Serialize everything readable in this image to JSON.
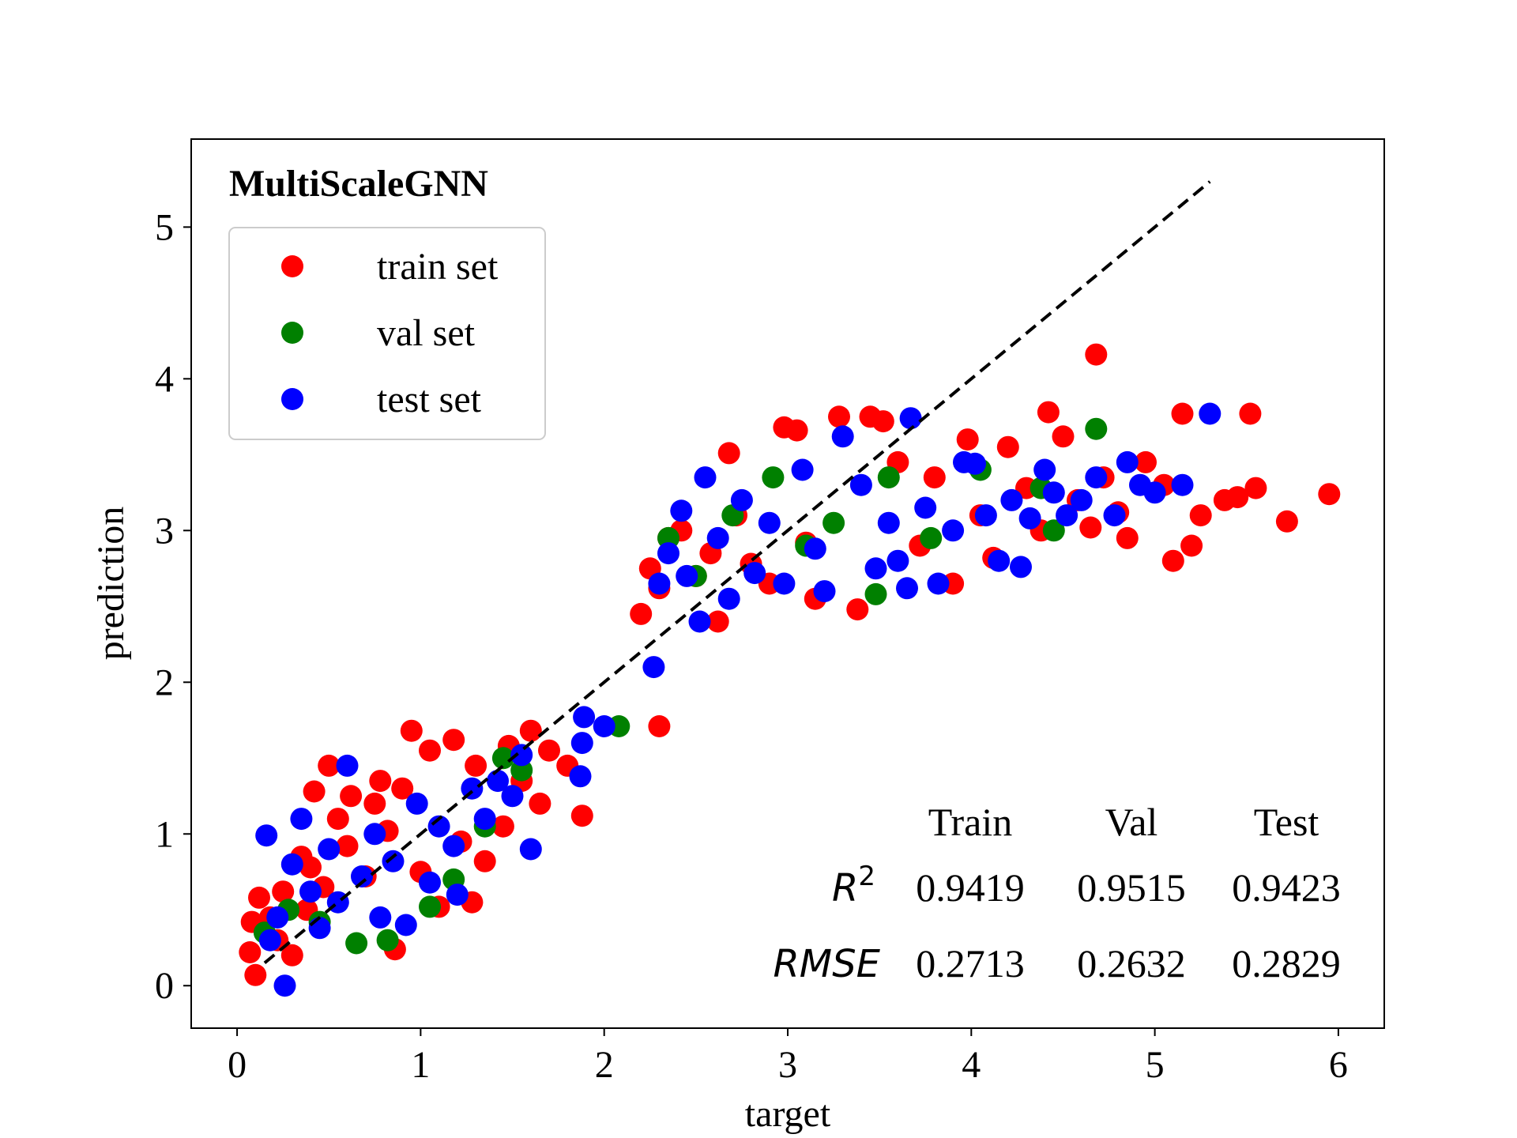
{
  "chart_data": {
    "type": "scatter",
    "title": "MultiScaleGNN",
    "xlabel": "target",
    "ylabel": "prediction",
    "xlim": [
      -0.25,
      6.25
    ],
    "ylim": [
      -0.28,
      5.58
    ],
    "xticks": [
      "0",
      "1",
      "2",
      "3",
      "4",
      "5",
      "6"
    ],
    "yticks": [
      "0",
      "1",
      "2",
      "3",
      "4",
      "5"
    ],
    "legend_position": "top-left",
    "grid": false,
    "reference_line": {
      "style": "dashed",
      "color": "#000000",
      "from": [
        0.15,
        0.15
      ],
      "to": [
        5.3,
        5.3
      ]
    },
    "series": [
      {
        "name": "train set",
        "color": "#ff0000",
        "values": [
          [
            0.08,
            0.42
          ],
          [
            0.07,
            0.22
          ],
          [
            0.1,
            0.07
          ],
          [
            0.12,
            0.58
          ],
          [
            0.18,
            0.45
          ],
          [
            0.22,
            0.3
          ],
          [
            0.25,
            0.62
          ],
          [
            0.3,
            0.2
          ],
          [
            0.35,
            0.85
          ],
          [
            0.38,
            0.5
          ],
          [
            0.4,
            0.78
          ],
          [
            0.42,
            1.28
          ],
          [
            0.47,
            0.65
          ],
          [
            0.5,
            1.45
          ],
          [
            0.55,
            1.1
          ],
          [
            0.6,
            0.92
          ],
          [
            0.62,
            1.25
          ],
          [
            0.7,
            0.72
          ],
          [
            0.75,
            1.2
          ],
          [
            0.78,
            1.35
          ],
          [
            0.82,
            1.02
          ],
          [
            0.86,
            0.24
          ],
          [
            0.9,
            1.3
          ],
          [
            0.95,
            1.68
          ],
          [
            1.0,
            0.75
          ],
          [
            1.05,
            1.55
          ],
          [
            1.1,
            0.52
          ],
          [
            1.18,
            1.62
          ],
          [
            1.22,
            0.95
          ],
          [
            1.28,
            0.55
          ],
          [
            1.3,
            1.45
          ],
          [
            1.35,
            0.82
          ],
          [
            1.45,
            1.05
          ],
          [
            1.48,
            1.58
          ],
          [
            1.55,
            1.35
          ],
          [
            1.6,
            1.68
          ],
          [
            1.65,
            1.2
          ],
          [
            1.7,
            1.55
          ],
          [
            1.8,
            1.45
          ],
          [
            1.88,
            1.12
          ],
          [
            2.3,
            1.71
          ],
          [
            2.2,
            2.45
          ],
          [
            2.25,
            2.75
          ],
          [
            2.3,
            2.62
          ],
          [
            2.35,
            2.95
          ],
          [
            2.42,
            3.0
          ],
          [
            2.5,
            2.7
          ],
          [
            2.58,
            2.85
          ],
          [
            2.62,
            2.4
          ],
          [
            2.68,
            3.51
          ],
          [
            2.72,
            3.1
          ],
          [
            2.8,
            2.78
          ],
          [
            2.9,
            2.65
          ],
          [
            2.98,
            3.68
          ],
          [
            3.05,
            3.66
          ],
          [
            3.1,
            2.92
          ],
          [
            3.15,
            2.55
          ],
          [
            3.28,
            3.75
          ],
          [
            3.38,
            2.48
          ],
          [
            3.45,
            3.75
          ],
          [
            3.52,
            3.72
          ],
          [
            3.6,
            3.45
          ],
          [
            3.72,
            2.9
          ],
          [
            3.8,
            3.35
          ],
          [
            3.9,
            2.65
          ],
          [
            3.98,
            3.6
          ],
          [
            4.05,
            3.1
          ],
          [
            4.12,
            2.82
          ],
          [
            4.2,
            3.55
          ],
          [
            4.3,
            3.28
          ],
          [
            4.38,
            3.0
          ],
          [
            4.42,
            3.78
          ],
          [
            4.5,
            3.62
          ],
          [
            4.58,
            3.2
          ],
          [
            4.65,
            3.02
          ],
          [
            4.68,
            4.16
          ],
          [
            4.72,
            3.35
          ],
          [
            4.8,
            3.12
          ],
          [
            4.85,
            2.95
          ],
          [
            4.95,
            3.45
          ],
          [
            5.05,
            3.3
          ],
          [
            5.1,
            2.8
          ],
          [
            5.15,
            3.77
          ],
          [
            5.2,
            2.9
          ],
          [
            5.25,
            3.1
          ],
          [
            5.38,
            3.2
          ],
          [
            5.45,
            3.22
          ],
          [
            5.52,
            3.77
          ],
          [
            5.55,
            3.28
          ],
          [
            5.72,
            3.06
          ],
          [
            5.95,
            3.24
          ]
        ]
      },
      {
        "name": "val set",
        "color": "#008000",
        "values": [
          [
            0.15,
            0.35
          ],
          [
            0.28,
            0.5
          ],
          [
            0.45,
            0.42
          ],
          [
            0.65,
            0.28
          ],
          [
            0.82,
            0.3
          ],
          [
            1.05,
            0.52
          ],
          [
            1.18,
            0.7
          ],
          [
            1.35,
            1.05
          ],
          [
            1.45,
            1.5
          ],
          [
            1.55,
            1.42
          ],
          [
            2.08,
            1.71
          ],
          [
            2.35,
            2.95
          ],
          [
            2.5,
            2.7
          ],
          [
            2.7,
            3.1
          ],
          [
            2.92,
            3.35
          ],
          [
            3.1,
            2.9
          ],
          [
            3.25,
            3.05
          ],
          [
            3.48,
            2.58
          ],
          [
            3.55,
            3.35
          ],
          [
            3.78,
            2.95
          ],
          [
            4.05,
            3.4
          ],
          [
            4.38,
            3.28
          ],
          [
            4.45,
            3.0
          ],
          [
            4.68,
            3.67
          ]
        ]
      },
      {
        "name": "test set",
        "color": "#0000ff",
        "values": [
          [
            0.16,
            0.99
          ],
          [
            0.18,
            0.3
          ],
          [
            0.22,
            0.45
          ],
          [
            0.26,
            0.0
          ],
          [
            0.3,
            0.8
          ],
          [
            0.35,
            1.1
          ],
          [
            0.4,
            0.62
          ],
          [
            0.45,
            0.38
          ],
          [
            0.5,
            0.9
          ],
          [
            0.55,
            0.55
          ],
          [
            0.6,
            1.45
          ],
          [
            0.68,
            0.72
          ],
          [
            0.75,
            1.0
          ],
          [
            0.78,
            0.45
          ],
          [
            0.85,
            0.82
          ],
          [
            0.92,
            0.4
          ],
          [
            0.98,
            1.2
          ],
          [
            1.05,
            0.68
          ],
          [
            1.1,
            1.05
          ],
          [
            1.18,
            0.92
          ],
          [
            1.2,
            0.6
          ],
          [
            1.28,
            1.3
          ],
          [
            1.35,
            1.1
          ],
          [
            1.42,
            1.35
          ],
          [
            1.5,
            1.25
          ],
          [
            1.55,
            1.52
          ],
          [
            1.6,
            0.9
          ],
          [
            1.87,
            1.38
          ],
          [
            1.88,
            1.6
          ],
          [
            1.89,
            1.77
          ],
          [
            2.0,
            1.71
          ],
          [
            2.27,
            2.1
          ],
          [
            2.3,
            2.65
          ],
          [
            2.35,
            2.85
          ],
          [
            2.42,
            3.13
          ],
          [
            2.45,
            2.7
          ],
          [
            2.52,
            2.4
          ],
          [
            2.55,
            3.35
          ],
          [
            2.62,
            2.95
          ],
          [
            2.68,
            2.55
          ],
          [
            2.75,
            3.2
          ],
          [
            2.82,
            2.72
          ],
          [
            2.9,
            3.05
          ],
          [
            2.98,
            2.65
          ],
          [
            3.08,
            3.4
          ],
          [
            3.15,
            2.88
          ],
          [
            3.2,
            2.6
          ],
          [
            3.3,
            3.62
          ],
          [
            3.4,
            3.3
          ],
          [
            3.48,
            2.75
          ],
          [
            3.55,
            3.05
          ],
          [
            3.6,
            2.8
          ],
          [
            3.65,
            2.62
          ],
          [
            3.67,
            3.74
          ],
          [
            3.75,
            3.15
          ],
          [
            3.82,
            2.65
          ],
          [
            3.9,
            3.0
          ],
          [
            3.96,
            3.45
          ],
          [
            4.02,
            3.44
          ],
          [
            4.08,
            3.1
          ],
          [
            4.15,
            2.8
          ],
          [
            4.22,
            3.2
          ],
          [
            4.27,
            2.76
          ],
          [
            4.32,
            3.08
          ],
          [
            4.4,
            3.4
          ],
          [
            4.45,
            3.25
          ],
          [
            4.52,
            3.1
          ],
          [
            4.6,
            3.2
          ],
          [
            4.68,
            3.35
          ],
          [
            4.78,
            3.1
          ],
          [
            4.85,
            3.45
          ],
          [
            4.92,
            3.3
          ],
          [
            5.0,
            3.25
          ],
          [
            5.15,
            3.3
          ],
          [
            5.3,
            3.77
          ]
        ]
      }
    ],
    "metrics_table": {
      "columns": [
        "Train",
        "Val",
        "Test"
      ],
      "rows": [
        {
          "label": "R²",
          "label_base": "R",
          "label_sup": "2",
          "values": [
            "0.9419",
            "0.9515",
            "0.9423"
          ]
        },
        {
          "label": "RMSE",
          "values": [
            "0.2713",
            "0.2632",
            "0.2829"
          ]
        }
      ]
    }
  }
}
